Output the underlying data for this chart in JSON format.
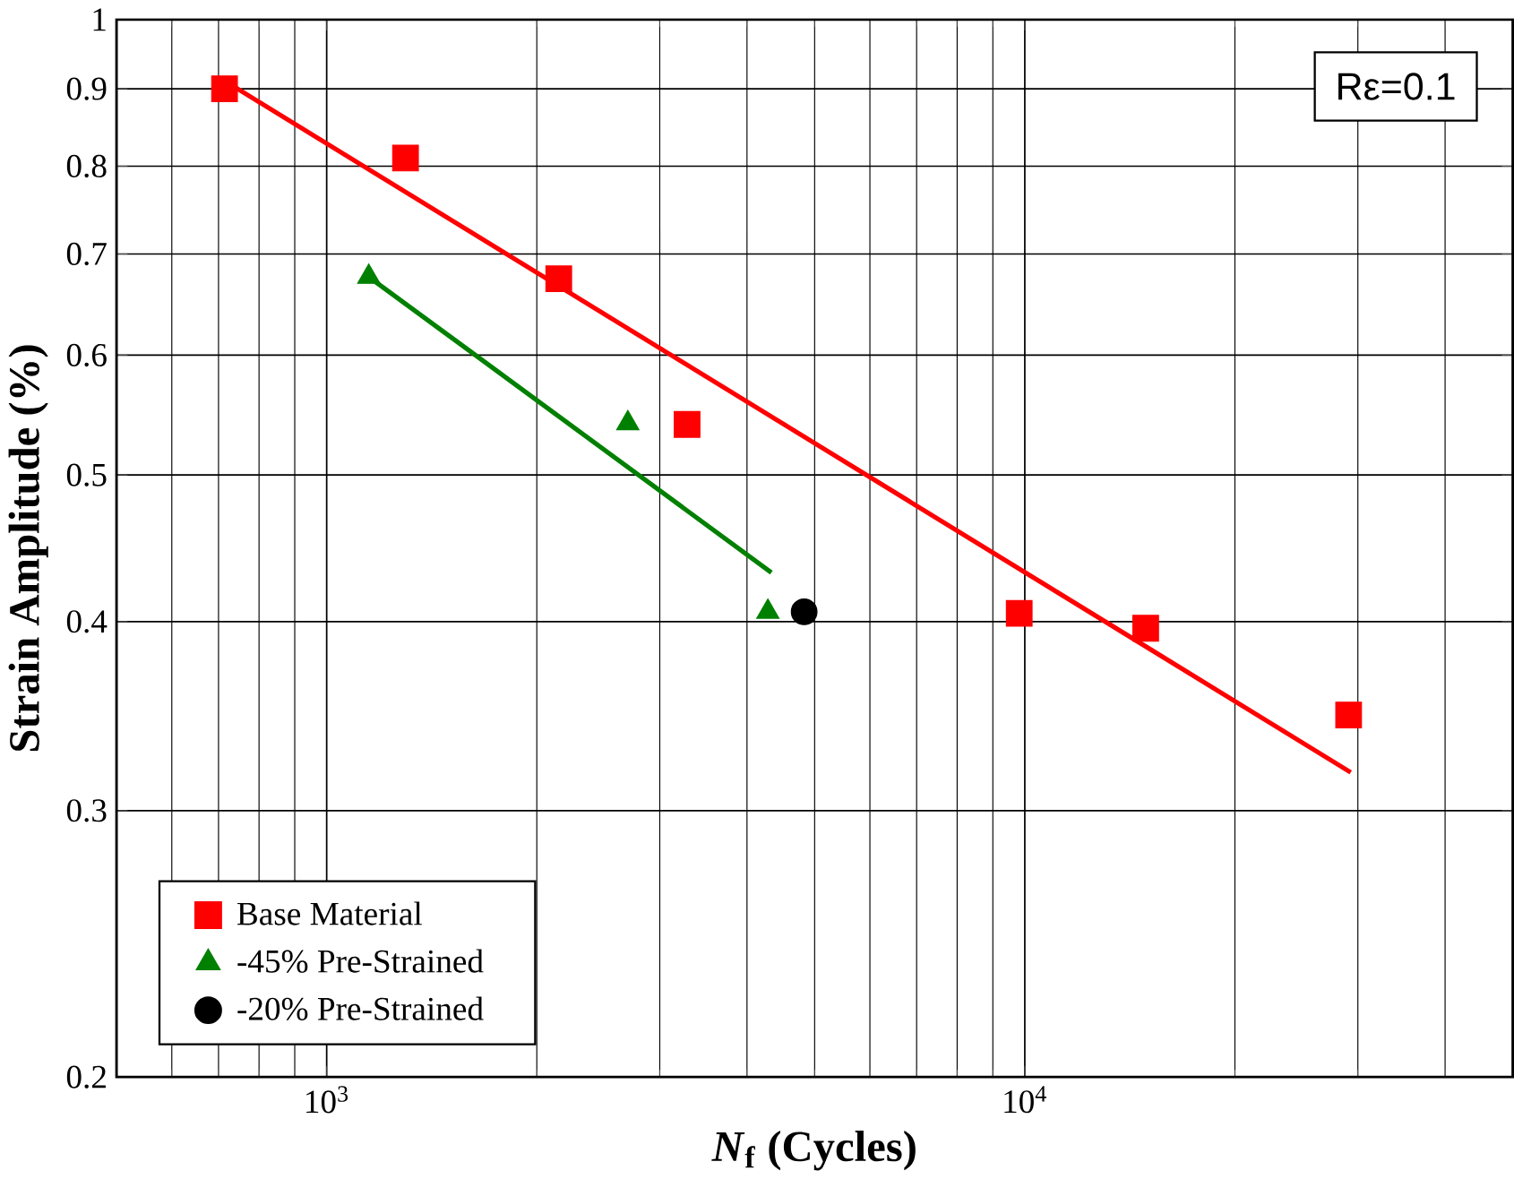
{
  "chart_data": {
    "type": "scatter",
    "xlabel": "*N*$_{f}$  (Cycles)",
    "ylabel": "Strain Amplitude (%)",
    "log": "xy",
    "grid": true,
    "legend": "bottom left",
    "xlim": [
      500,
      50000
    ],
    "ylim": [
      0.2,
      1
    ],
    "xticks": [
      {
        "value": 1000,
        "label": "10$^{3}$"
      },
      {
        "value": 10000,
        "label": "10$^{4}$"
      }
    ],
    "yticks": [
      0.2,
      0.3,
      0.4,
      0.5,
      0.6,
      0.7,
      0.8,
      0.9,
      1
    ],
    "annotations": [
      "Rε=0.1"
    ],
    "series": [
      {
        "name": "Base Material",
        "marker": "square",
        "color": "#ff0000",
        "x": [
          714,
          1297,
          2150,
          3283,
          9818,
          14900,
          29100
        ],
        "values": [
          0.9,
          0.81,
          0.674,
          0.54,
          0.405,
          0.396,
          0.347
        ]
      },
      {
        "name": "-45% Pre-Strained",
        "marker": "triangle",
        "color": "#008000",
        "x": [
          1149,
          2700,
          4285
        ],
        "values": [
          0.676,
          0.541,
          0.406
        ]
      },
      {
        "name": "-20% Pre-Strained",
        "marker": "circle",
        "color": "#000000",
        "x": [
          4830
        ],
        "values": [
          0.406
        ]
      },
      {
        "type": "line",
        "marker": "none",
        "color": "#ff0000",
        "x": [
          714,
          29300
        ],
        "values": [
          0.911,
          0.318
        ]
      },
      {
        "type": "line",
        "marker": "none",
        "color": "#008000",
        "x": [
          1149,
          4335
        ],
        "values": [
          0.676,
          0.431
        ]
      }
    ]
  }
}
